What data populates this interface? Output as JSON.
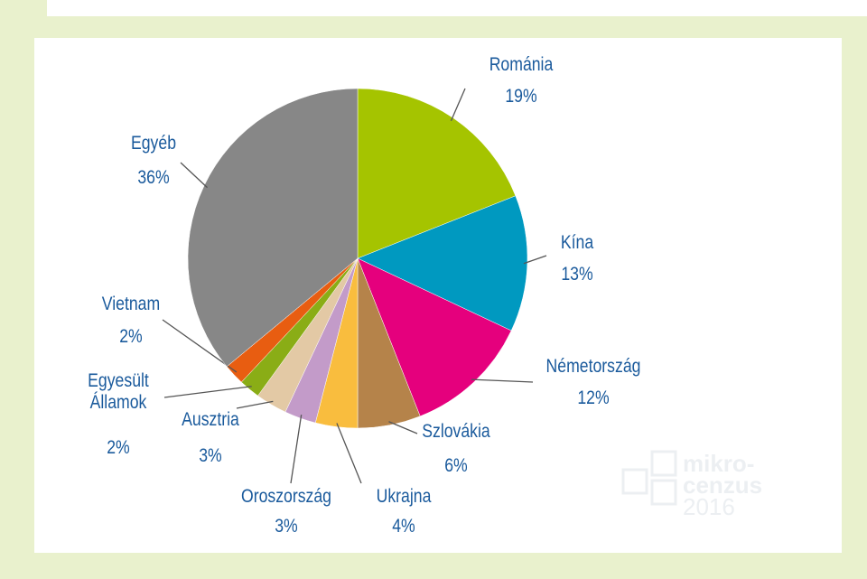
{
  "chart_data": {
    "type": "pie",
    "categories": [
      "Románia",
      "Kína",
      "Németország",
      "Szlovákia",
      "Ukrajna",
      "Oroszország",
      "Ausztria",
      "Egyesült Államok",
      "Vietnam",
      "Egyéb"
    ],
    "values": [
      19,
      13,
      12,
      6,
      4,
      3,
      3,
      2,
      2,
      36
    ],
    "value_labels": [
      "19%",
      "13%",
      "12%",
      "6%",
      "4%",
      "3%",
      "3%",
      "2%",
      "2%",
      "36%"
    ],
    "colors": [
      "#a5c400",
      "#0099c0",
      "#e5007d",
      "#b5834a",
      "#f9bd3e",
      "#c39bc9",
      "#e3c9a5",
      "#8aad16",
      "#e85d11",
      "#878787"
    ]
  },
  "watermark": [
    "mikro-",
    "cenzus",
    "2016"
  ]
}
